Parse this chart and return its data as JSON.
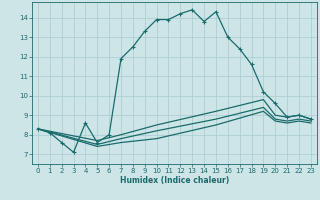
{
  "xlabel": "Humidex (Indice chaleur)",
  "xlim": [
    -0.5,
    23.5
  ],
  "ylim": [
    6.5,
    14.8
  ],
  "yticks": [
    7,
    8,
    9,
    10,
    11,
    12,
    13,
    14
  ],
  "xticks": [
    0,
    1,
    2,
    3,
    4,
    5,
    6,
    7,
    8,
    9,
    10,
    11,
    12,
    13,
    14,
    15,
    16,
    17,
    18,
    19,
    20,
    21,
    22,
    23
  ],
  "bg_color": "#cee5e8",
  "grid_color": "#aecfd4",
  "line_color": "#1a6b6b",
  "curve1_x": [
    0,
    1,
    2,
    3,
    4,
    5,
    6,
    7,
    8,
    9,
    10,
    11,
    12,
    13,
    14,
    15,
    16,
    17,
    18,
    19,
    20,
    21,
    22,
    23
  ],
  "curve1_y": [
    8.3,
    8.1,
    7.6,
    7.1,
    8.6,
    7.6,
    8.0,
    11.9,
    12.5,
    13.3,
    13.9,
    13.9,
    14.2,
    14.4,
    13.8,
    14.3,
    13.0,
    12.4,
    11.6,
    10.2,
    9.6,
    8.9,
    9.0,
    8.8
  ],
  "curve2_x": [
    0,
    5,
    7,
    10,
    15,
    19,
    20,
    21,
    22,
    23
  ],
  "curve2_y": [
    8.3,
    7.7,
    8.0,
    8.5,
    9.2,
    9.8,
    9.0,
    8.9,
    9.0,
    8.8
  ],
  "curve3_x": [
    0,
    5,
    7,
    10,
    15,
    19,
    20,
    21,
    22,
    23
  ],
  "curve3_y": [
    8.3,
    7.5,
    7.8,
    8.2,
    8.8,
    9.4,
    8.8,
    8.7,
    8.8,
    8.7
  ],
  "curve4_x": [
    0,
    5,
    7,
    10,
    15,
    19,
    20,
    21,
    22,
    23
  ],
  "curve4_y": [
    8.3,
    7.4,
    7.6,
    7.8,
    8.5,
    9.2,
    8.7,
    8.6,
    8.7,
    8.6
  ]
}
